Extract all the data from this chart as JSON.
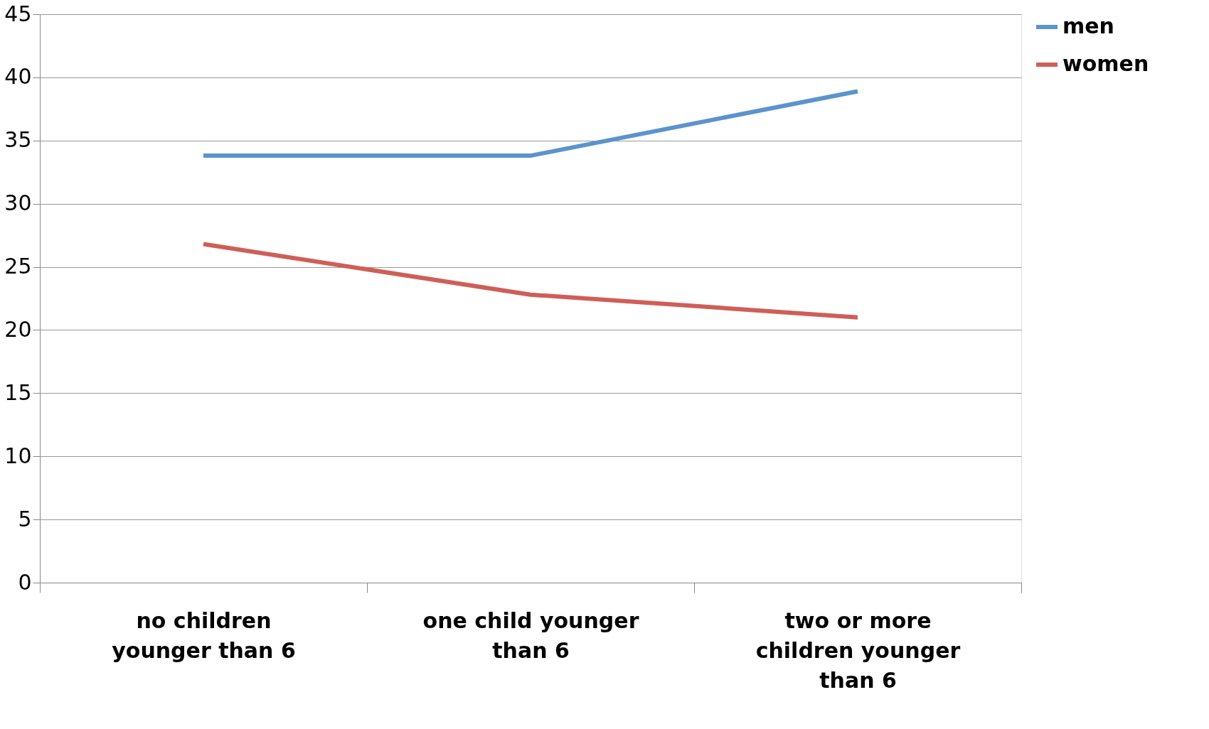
{
  "chart_data": {
    "type": "line",
    "categories": [
      "no children younger than 6",
      "one child younger than 6",
      "two or more children younger than 6"
    ],
    "series": [
      {
        "name": "men",
        "color": "#5b93cd",
        "values": [
          33.8,
          33.8,
          38.9
        ]
      },
      {
        "name": "women",
        "color": "#cf5e58",
        "values": [
          26.8,
          22.8,
          21.0
        ]
      }
    ],
    "ylim": [
      0,
      45
    ],
    "yticks": [
      0,
      5,
      10,
      15,
      20,
      25,
      30,
      35,
      40,
      45
    ],
    "grid": "y",
    "legend": "right",
    "marker": "none",
    "line_style": "solid"
  }
}
